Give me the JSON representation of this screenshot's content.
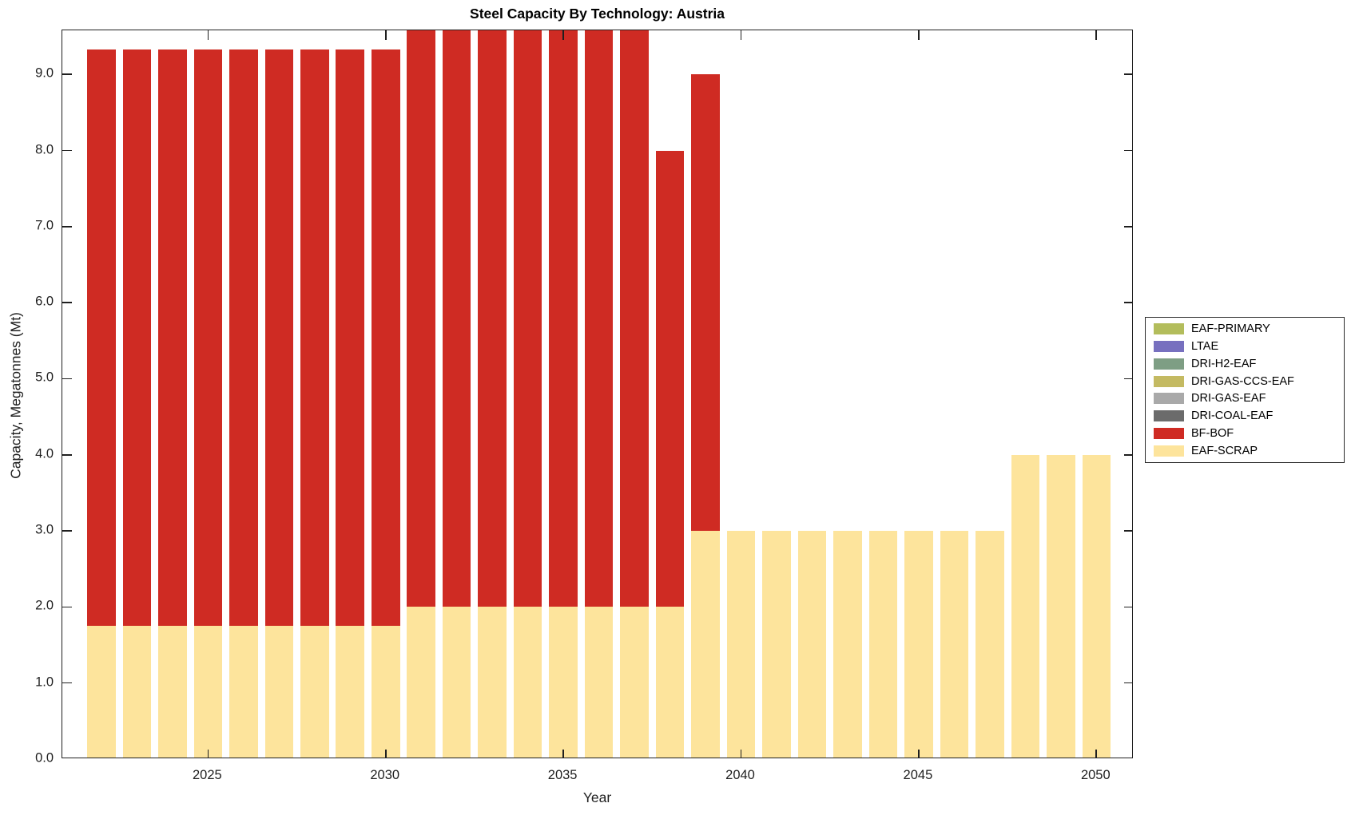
{
  "title": "Steel Capacity By Technology: Austria",
  "chart_data": {
    "type": "bar",
    "stacked": true,
    "title": "Steel Capacity By Technology: Austria",
    "xlabel": "Year",
    "ylabel": "Capacity, Megatonnes (Mt)",
    "x": [
      2022,
      2023,
      2024,
      2025,
      2026,
      2027,
      2028,
      2029,
      2030,
      2031,
      2032,
      2033,
      2034,
      2035,
      2036,
      2037,
      2038,
      2039,
      2040,
      2041,
      2042,
      2043,
      2044,
      2045,
      2046,
      2047,
      2048,
      2049,
      2050
    ],
    "series": [
      {
        "name": "EAF-SCRAP",
        "color": "#fde49c",
        "values": [
          1.75,
          1.75,
          1.75,
          1.75,
          1.75,
          1.75,
          1.75,
          1.75,
          1.75,
          2.0,
          2.0,
          2.0,
          2.0,
          2.0,
          2.0,
          2.0,
          2.0,
          3.0,
          3.0,
          3.0,
          3.0,
          3.0,
          3.0,
          3.0,
          3.0,
          3.0,
          4.0,
          4.0,
          4.0
        ]
      },
      {
        "name": "BF-BOF",
        "color": "#cf2b23",
        "values": [
          7.58,
          7.58,
          7.58,
          7.58,
          7.58,
          7.58,
          7.58,
          7.58,
          7.58,
          7.58,
          7.58,
          7.58,
          7.58,
          7.58,
          7.58,
          7.58,
          6.0,
          6.0,
          0,
          0,
          0,
          0,
          0,
          0,
          0,
          0,
          0,
          0,
          0
        ]
      },
      {
        "name": "DRI-COAL-EAF",
        "color": "#6b6b6b",
        "values": [
          0,
          0,
          0,
          0,
          0,
          0,
          0,
          0,
          0,
          0,
          0,
          0,
          0,
          0,
          0,
          0,
          0,
          0,
          0,
          0,
          0,
          0,
          0,
          0,
          0,
          0,
          0,
          0,
          0
        ]
      },
      {
        "name": "DRI-GAS-EAF",
        "color": "#a9a9a9",
        "values": [
          0,
          0,
          0,
          0,
          0,
          0,
          0,
          0,
          0,
          0,
          0,
          0,
          0,
          0,
          0,
          0,
          0,
          0,
          0,
          0,
          0,
          0,
          0,
          0,
          0,
          0,
          0,
          0,
          0
        ]
      },
      {
        "name": "DRI-GAS-CCS-EAF",
        "color": "#c4ba62",
        "values": [
          0,
          0,
          0,
          0,
          0,
          0,
          0,
          0,
          0,
          0,
          0,
          0,
          0,
          0,
          0,
          0,
          0,
          0,
          0,
          0,
          0,
          0,
          0,
          0,
          0,
          0,
          0,
          0,
          0
        ]
      },
      {
        "name": "DRI-H2-EAF",
        "color": "#7e9e84",
        "values": [
          0,
          0,
          0,
          0,
          0,
          0,
          0,
          0,
          0,
          0,
          0,
          0,
          0,
          0,
          0,
          0,
          0,
          0,
          0,
          0,
          0,
          0,
          0,
          0,
          0,
          0,
          0,
          0,
          0
        ]
      },
      {
        "name": "LTAE",
        "color": "#7770bf",
        "values": [
          0,
          0,
          0,
          0,
          0,
          0,
          0,
          0,
          0,
          0,
          0,
          0,
          0,
          0,
          0,
          0,
          0,
          0,
          0,
          0,
          0,
          0,
          0,
          0,
          0,
          0,
          0,
          0,
          0
        ]
      },
      {
        "name": "EAF-PRIMARY",
        "color": "#b3bd5c",
        "values": [
          0,
          0,
          0,
          0,
          0,
          0,
          0,
          0,
          0,
          0,
          0,
          0,
          0,
          0,
          0,
          0,
          0,
          0,
          0,
          0,
          0,
          0,
          0,
          0,
          0,
          0,
          0,
          0,
          0
        ]
      }
    ],
    "xlim": [
      2020.9,
      2051.05
    ],
    "ylim": [
      0,
      9.58
    ],
    "bar_width": 0.8,
    "grid": false,
    "xticks": [
      2025,
      2030,
      2035,
      2040,
      2045,
      2050
    ],
    "yticks": [
      0,
      1,
      2,
      3,
      4,
      5,
      6,
      7,
      8,
      9
    ],
    "ytick_labels": [
      "0.0",
      "1.0",
      "2.0",
      "3.0",
      "4.0",
      "5.0",
      "6.0",
      "7.0",
      "8.0",
      "9.0"
    ],
    "legend_position": "right-outside"
  },
  "legend": {
    "items": [
      {
        "label": "EAF-PRIMARY",
        "color": "#b3bd5c"
      },
      {
        "label": "LTAE",
        "color": "#7770bf"
      },
      {
        "label": "DRI-H2-EAF",
        "color": "#7e9e84"
      },
      {
        "label": "DRI-GAS-CCS-EAF",
        "color": "#c4ba62"
      },
      {
        "label": "DRI-GAS-EAF",
        "color": "#a9a9a9"
      },
      {
        "label": "DRI-COAL-EAF",
        "color": "#6b6b6b"
      },
      {
        "label": "BF-BOF",
        "color": "#cf2b23"
      },
      {
        "label": "EAF-SCRAP",
        "color": "#fde49c"
      }
    ]
  },
  "axes": {
    "xlabel": "Year",
    "ylabel": "Capacity, Megatonnes (Mt)"
  }
}
